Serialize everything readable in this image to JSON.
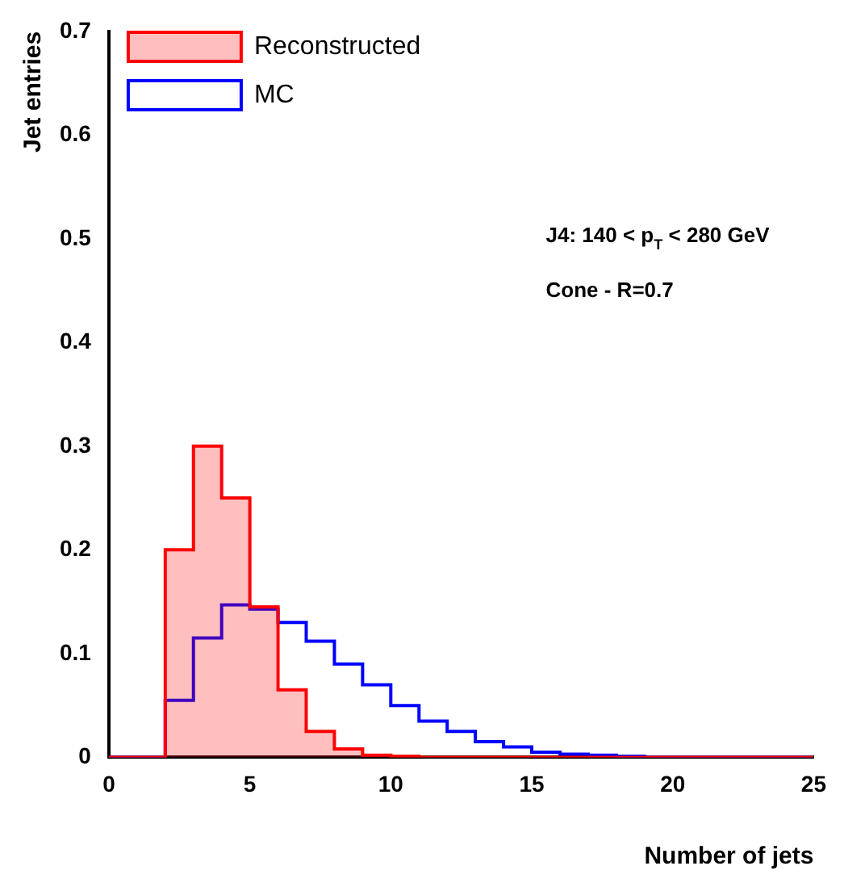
{
  "chart_data": {
    "type": "histogram",
    "xlabel": "Number of jets",
    "ylabel": "Jet entries",
    "bins": [
      0,
      1,
      2,
      3,
      4,
      5,
      6,
      7,
      8,
      9,
      10,
      11,
      12,
      13,
      14,
      15,
      16,
      17,
      18,
      19,
      20,
      21,
      22,
      23,
      24,
      25
    ],
    "series": [
      {
        "name": "Reconstructed",
        "color": "#ff0000",
        "values": [
          0,
          0,
          0.2,
          0.3,
          0.25,
          0.145,
          0.065,
          0.025,
          0.008,
          0.002,
          0.001,
          0,
          0,
          0,
          0,
          0,
          0,
          0,
          0,
          0,
          0,
          0,
          0,
          0,
          0
        ]
      },
      {
        "name": "MC",
        "color": "#0000ff",
        "values": [
          0,
          0,
          0.055,
          0.115,
          0.147,
          0.143,
          0.13,
          0.112,
          0.09,
          0.07,
          0.05,
          0.035,
          0.025,
          0.015,
          0.01,
          0.005,
          0.003,
          0.002,
          0.001,
          0,
          0,
          0,
          0,
          0,
          0
        ]
      }
    ],
    "xlim": [
      0,
      25
    ],
    "xticks": [
      0,
      5,
      10,
      15,
      20,
      25
    ],
    "ylim": [
      0,
      0.7
    ],
    "yticks": [
      0,
      0.1,
      0.2,
      0.3,
      0.4,
      0.5,
      0.6,
      0.7
    ],
    "legend": "top left",
    "grid": false,
    "annotations": [
      "J4: 140 < p$_{T}$ < 280 GeV",
      "Cone - R=0.7"
    ]
  }
}
